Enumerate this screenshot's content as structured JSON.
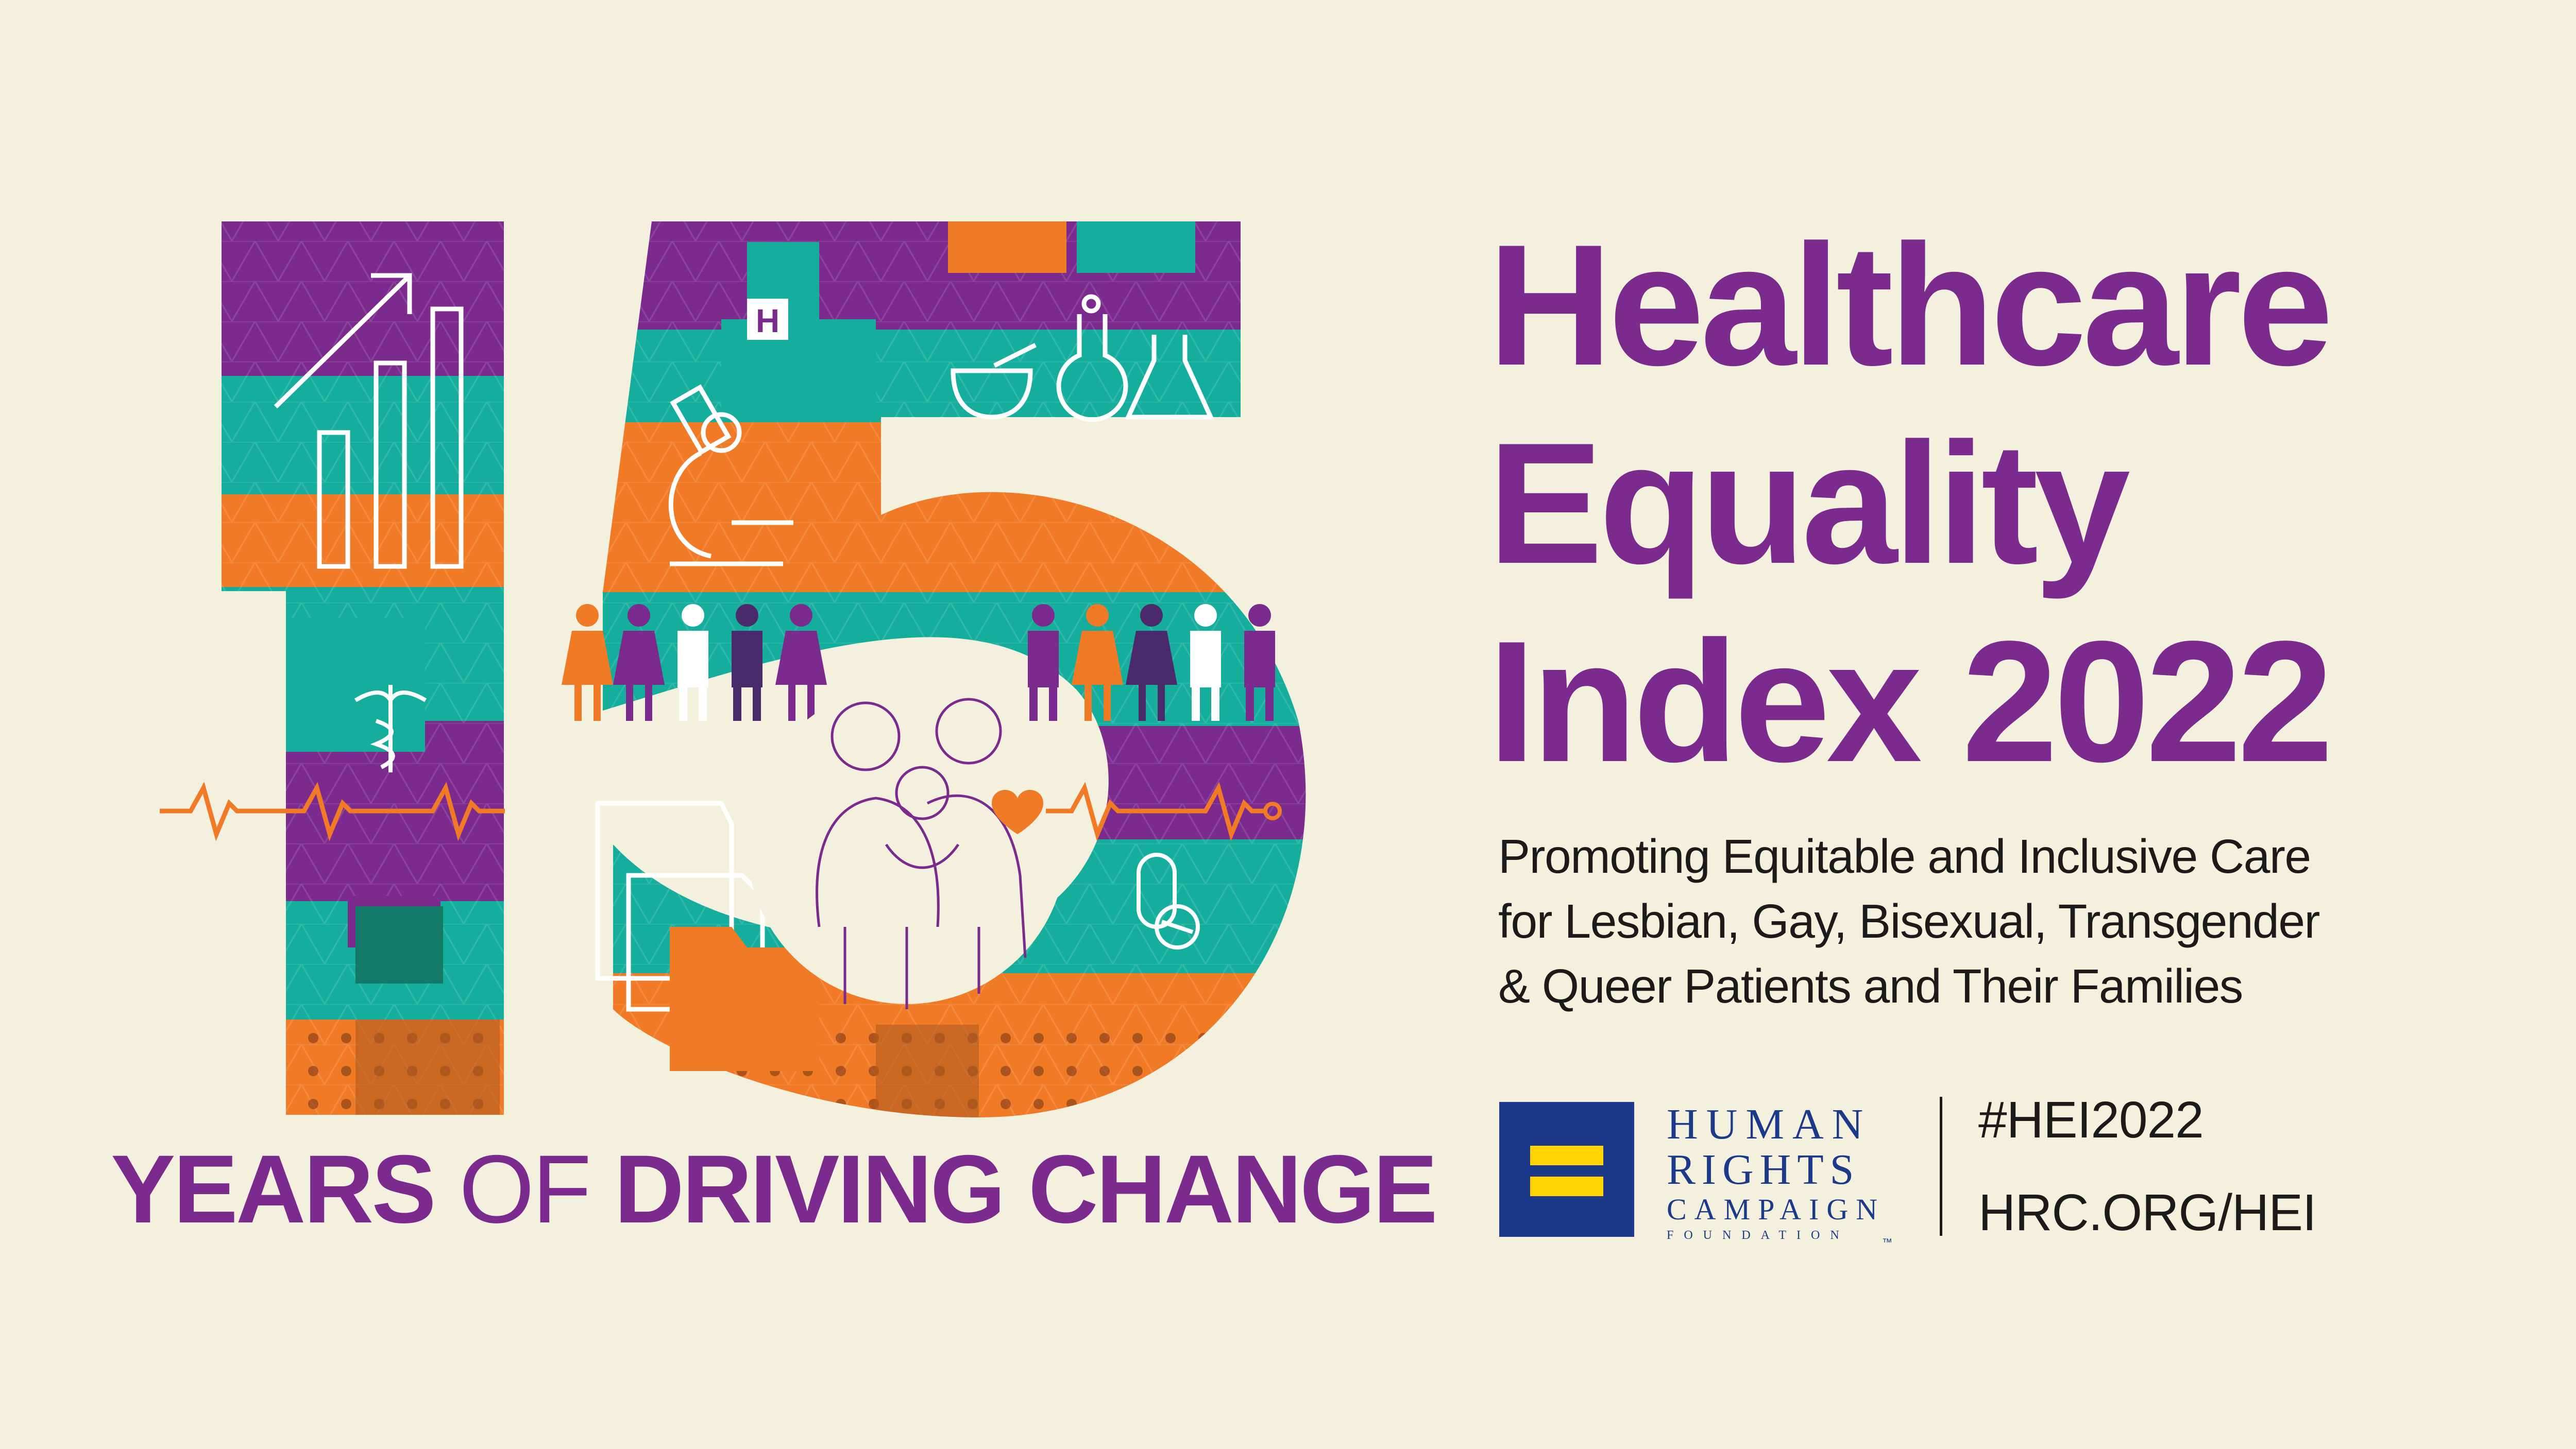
{
  "tagline": {
    "part1": "YEARS",
    "part2": "OF",
    "part3": "DRIVING CHANGE"
  },
  "title": {
    "line1": "Healthcare",
    "line2": "Equality",
    "line3": "Index 2022"
  },
  "subtitle": {
    "line1": "Promoting Equitable and Inclusive Care",
    "line2": "for Lesbian, Gay, Bisexual, Transgender",
    "line3": "& Queer Patients and Their Families"
  },
  "logo": {
    "line1": "HUMAN",
    "line2": "RIGHTS",
    "line3": "CAMPAIGN",
    "line4": "FOUNDATION",
    "trademark": "™",
    "icon": "equality-sign-icon"
  },
  "links": {
    "hashtag": "#HEI2022",
    "url": "HRC.ORG/HEI"
  },
  "artwork": {
    "hospital_letter": "H",
    "icons": [
      "growth-chart-icon",
      "hospital-icon",
      "microscope-icon",
      "mortar-pestle-icon",
      "flask-icon",
      "people-icon",
      "caduceus-icon",
      "heartbeat-icon",
      "folder-icon",
      "family-portrait-icon",
      "heart-icon",
      "pill-icon"
    ]
  },
  "colors": {
    "background": "#f3f0dd",
    "purple": "#7b2a8e",
    "teal": "#15ae9c",
    "orange": "#f07a26",
    "brown": "#b05a1f",
    "navy": "#1d3a8a",
    "yellow": "#ffd400"
  }
}
